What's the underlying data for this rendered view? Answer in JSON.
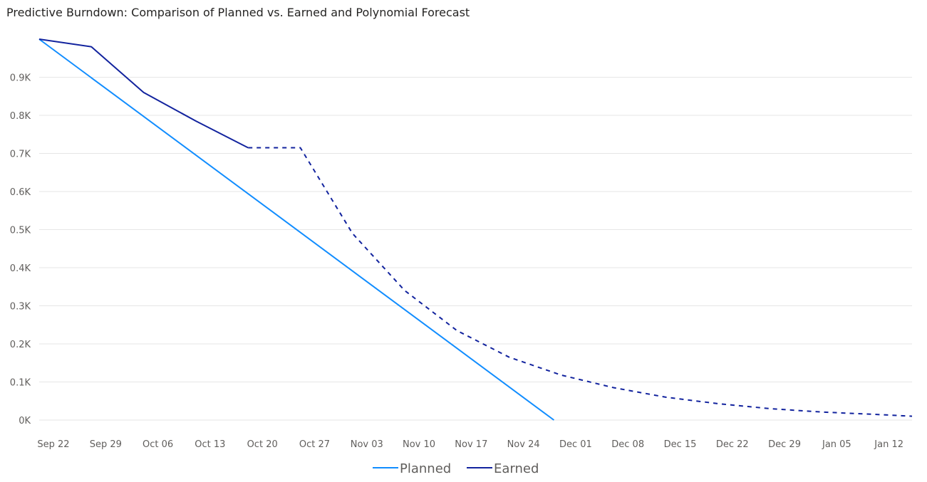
{
  "title": "Predictive Burndown: Comparison of Planned vs. Earned and Polynomial Forecast",
  "colors": {
    "planned": "#118dff",
    "earned": "#12239e",
    "grid": "#e6e6e6",
    "text": "#605e5c"
  },
  "chart_data": {
    "type": "line",
    "title": "Predictive Burndown: Comparison of Planned vs. Earned and Polynomial Forecast",
    "xlabel": "",
    "ylabel": "",
    "x_ticks": [
      "Sep 22",
      "Sep 29",
      "Oct 06",
      "Oct 13",
      "Oct 20",
      "Oct 27",
      "Nov 03",
      "Nov 10",
      "Nov 17",
      "Nov 24",
      "Dec 01",
      "Dec 08",
      "Dec 15",
      "Dec 22",
      "Dec 29",
      "Jan 05",
      "Jan 12"
    ],
    "y_ticks": [
      "0K",
      "0.1K",
      "0.2K",
      "0.3K",
      "0.4K",
      "0.5K",
      "0.6K",
      "0.7K",
      "0.8K",
      "0.9K"
    ],
    "ylim": [
      0,
      1000
    ],
    "grid": true,
    "legend_position": "bottom-center",
    "series": [
      {
        "name": "Planned",
        "style": "solid",
        "points": [
          [
            "2024-09-22",
            1000
          ],
          [
            "2024-11-30",
            0
          ]
        ]
      },
      {
        "name": "Earned",
        "style": "solid",
        "points": [
          [
            "2024-09-22",
            1000
          ],
          [
            "2024-09-29",
            980
          ],
          [
            "2024-10-06",
            860
          ],
          [
            "2024-10-13",
            785
          ],
          [
            "2024-10-20",
            715
          ]
        ]
      },
      {
        "name": "Earned",
        "style": "dashed",
        "role": "forecast",
        "points": [
          [
            "2024-10-20",
            715
          ],
          [
            "2024-10-27",
            715
          ],
          [
            "2024-11-03",
            490
          ],
          [
            "2024-11-10",
            340
          ],
          [
            "2024-11-17",
            235
          ],
          [
            "2024-11-24",
            165
          ],
          [
            "2024-12-01",
            118
          ],
          [
            "2024-12-08",
            85
          ],
          [
            "2024-12-15",
            60
          ],
          [
            "2024-12-22",
            43
          ],
          [
            "2024-12-29",
            30
          ],
          [
            "2025-01-05",
            21
          ],
          [
            "2025-01-12",
            15
          ],
          [
            "2025-01-17",
            10
          ]
        ]
      }
    ]
  }
}
